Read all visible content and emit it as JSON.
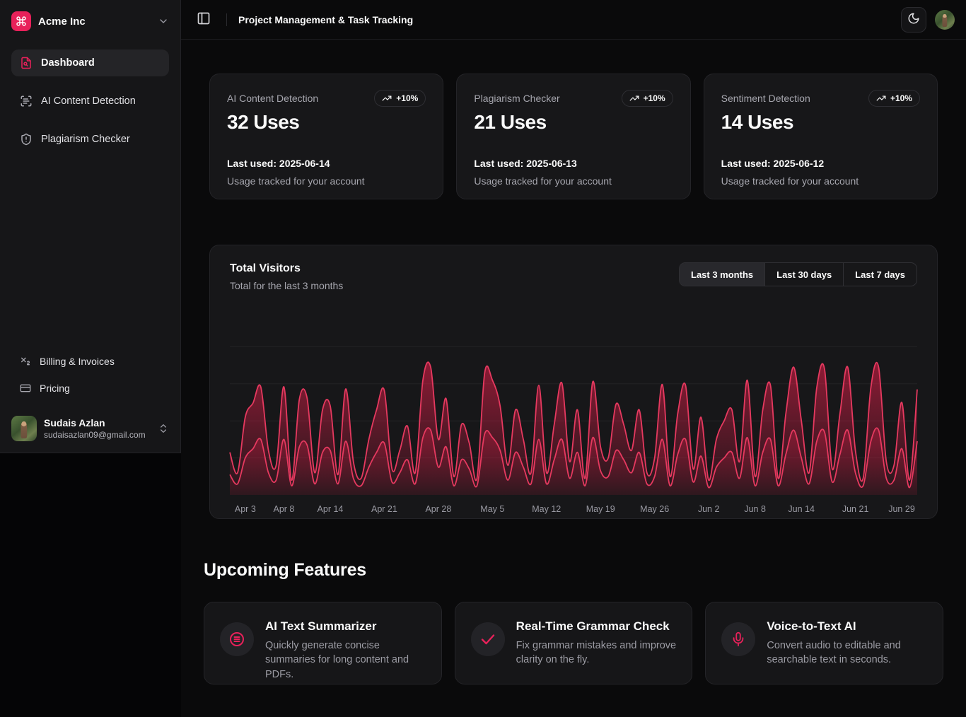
{
  "theme": {
    "accent": "#e8215a",
    "background": "#0a0a0b",
    "card": "#171719",
    "sidebar": "#161618"
  },
  "brand": {
    "name": "Acme Inc",
    "logo_icon": "command-icon"
  },
  "header": {
    "title": "Project Management & Task Tracking",
    "theme_toggle_icon": "moon-icon"
  },
  "sidebar": {
    "nav": [
      {
        "label": "Dashboard",
        "icon": "file-search-icon",
        "active": true
      },
      {
        "label": "AI Content Detection",
        "icon": "scan-text-icon",
        "active": false
      },
      {
        "label": "Plagiarism Checker",
        "icon": "shield-alert-icon",
        "active": false
      }
    ],
    "secondary": [
      {
        "label": "Billing & Invoices",
        "icon": "subscript-icon"
      },
      {
        "label": "Pricing",
        "icon": "credit-card-icon"
      }
    ],
    "user": {
      "name": "Sudais Azlan",
      "email": "sudaisazlan09@gmail.com"
    }
  },
  "stat_cards": [
    {
      "title": "AI Content Detection",
      "badge": "+10%",
      "badge_icon": "trending-up-icon",
      "value": "32 Uses",
      "last_used": "Last used: 2025-06-14",
      "footnote": "Usage tracked for your account"
    },
    {
      "title": "Plagiarism Checker",
      "badge": "+10%",
      "badge_icon": "trending-up-icon",
      "value": "21 Uses",
      "last_used": "Last used: 2025-06-13",
      "footnote": "Usage tracked for your account"
    },
    {
      "title": "Sentiment Detection",
      "badge": "+10%",
      "badge_icon": "trending-up-icon",
      "value": "14 Uses",
      "last_used": "Last used: 2025-06-12",
      "footnote": "Usage tracked for your account"
    }
  ],
  "visitors": {
    "title": "Total Visitors",
    "subtitle": "Total for the last 3 months",
    "ranges": [
      {
        "label": "Last 3 months",
        "active": true
      },
      {
        "label": "Last 30 days",
        "active": false
      },
      {
        "label": "Last 7 days",
        "active": false
      }
    ]
  },
  "chart_data": {
    "type": "area",
    "title": "Total Visitors",
    "xlabel": "",
    "ylabel": "",
    "ylim": [
      0,
      500
    ],
    "grid": true,
    "gridline_values": [
      100,
      200,
      300,
      400
    ],
    "legend": false,
    "x_tick_labels": [
      "Apr 3",
      "Apr 8",
      "Apr 14",
      "Apr 21",
      "Apr 28",
      "May 5",
      "May 12",
      "May 19",
      "May 26",
      "Jun 2",
      "Jun 8",
      "Jun 14",
      "Jun 21",
      "Jun 29"
    ],
    "x_tick_indices": [
      2,
      7,
      13,
      20,
      27,
      34,
      41,
      48,
      55,
      62,
      68,
      74,
      81,
      89
    ],
    "series": [
      {
        "name": "visitors_total",
        "values": [
          115,
          60,
          210,
          248,
          292,
          120,
          80,
          292,
          40,
          258,
          262,
          60,
          230,
          240,
          55,
          286,
          90,
          45,
          150,
          230,
          282,
          70,
          120,
          186,
          60,
          310,
          345,
          150,
          260,
          50,
          190,
          140,
          45,
          330,
          310,
          240,
          80,
          230,
          150,
          60,
          296,
          60,
          190,
          302,
          90,
          230,
          45,
          306,
          130,
          100,
          245,
          190,
          120,
          230,
          60,
          100,
          298,
          50,
          220,
          296,
          70,
          210,
          40,
          150,
          200,
          230,
          90,
          310,
          50,
          230,
          296,
          45,
          220,
          345,
          200,
          60,
          290,
          340,
          70,
          220,
          345,
          120,
          45,
          290,
          345,
          90,
          80,
          250,
          40,
          285
        ]
      },
      {
        "name": "visitors_secondary",
        "values": [
          55,
          30,
          100,
          125,
          150,
          60,
          40,
          150,
          25,
          130,
          135,
          30,
          115,
          120,
          30,
          145,
          45,
          25,
          75,
          115,
          140,
          35,
          60,
          95,
          30,
          155,
          175,
          75,
          130,
          25,
          95,
          70,
          25,
          165,
          155,
          120,
          40,
          115,
          75,
          30,
          150,
          30,
          95,
          150,
          45,
          115,
          25,
          155,
          65,
          50,
          120,
          95,
          60,
          115,
          30,
          50,
          150,
          25,
          110,
          150,
          35,
          105,
          20,
          75,
          100,
          115,
          45,
          155,
          25,
          115,
          150,
          25,
          110,
          175,
          100,
          30,
          145,
          170,
          35,
          110,
          175,
          60,
          25,
          145,
          175,
          45,
          40,
          125,
          20,
          145
        ]
      }
    ],
    "colors": {
      "stroke": "#e5395f",
      "fill": "#e11d48",
      "grid": "#2a2a2e",
      "tick_text": "#9a9aa3"
    }
  },
  "upcoming": {
    "heading": "Upcoming Features",
    "features": [
      {
        "icon": "summary-circle-icon",
        "title": "AI Text Summarizer",
        "description": "Quickly generate concise summaries for long content and PDFs."
      },
      {
        "icon": "check-icon",
        "title": "Real-Time Grammar Check",
        "description": "Fix grammar mistakes and improve clarity on the fly."
      },
      {
        "icon": "microphone-icon",
        "title": "Voice-to-Text AI",
        "description": "Convert audio to editable and searchable text in seconds."
      }
    ]
  }
}
